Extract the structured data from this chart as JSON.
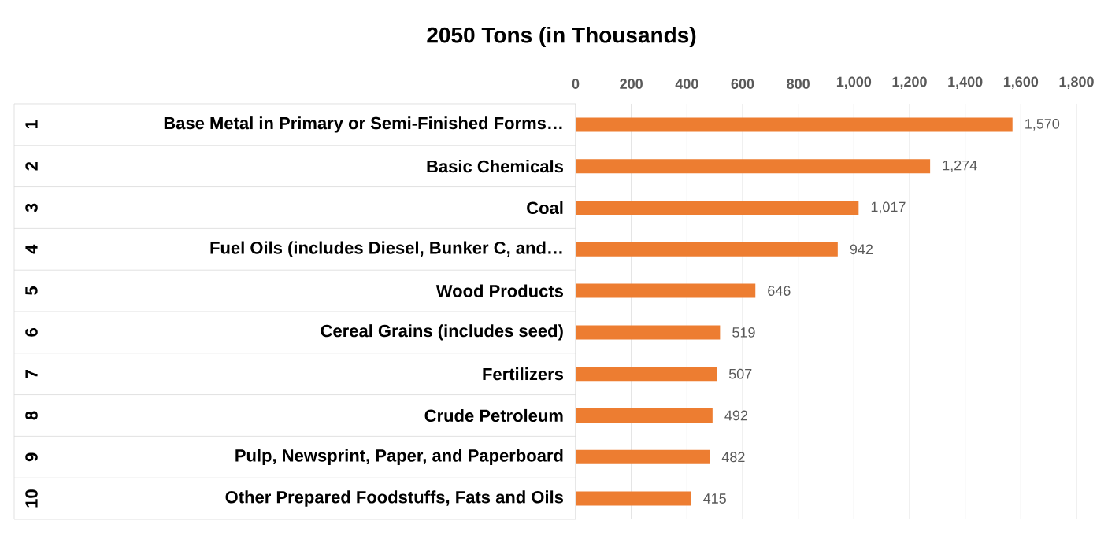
{
  "chart_data": {
    "type": "bar",
    "orientation": "horizontal",
    "title": "2050 Tons (in Thousands)",
    "categories": [
      "Base Metal in Primary or Semi-Finished Forms…",
      "Basic Chemicals",
      "Coal",
      "Fuel Oils (includes Diesel, Bunker C, and…",
      "Wood Products",
      "Cereal Grains (includes seed)",
      "Fertilizers",
      "Crude Petroleum",
      "Pulp, Newsprint, Paper, and Paperboard",
      "Other Prepared Foodstuffs, Fats and Oils"
    ],
    "values": [
      1570,
      1274,
      1017,
      942,
      646,
      519,
      507,
      492,
      482,
      415
    ],
    "value_labels": [
      "1,570",
      "1,274",
      "1,017",
      "942",
      "646",
      "519",
      "507",
      "492",
      "482",
      "415"
    ],
    "color": "#ed7d31",
    "xlim": [
      0,
      1800
    ],
    "xticks": [
      0,
      200,
      400,
      600,
      800,
      {
        "value": 1000,
        "label": "1,000"
      },
      {
        "value": 1200,
        "label": "1,200"
      },
      {
        "value": 1400,
        "label": "1,400"
      },
      {
        "value": 1600,
        "label": "1,600"
      },
      {
        "value": 1800,
        "label": "1,800"
      }
    ],
    "grid": "x",
    "annotations": [
      "1",
      "2",
      "3",
      "4",
      "5",
      "6",
      "7",
      "8",
      "9",
      "10"
    ]
  }
}
